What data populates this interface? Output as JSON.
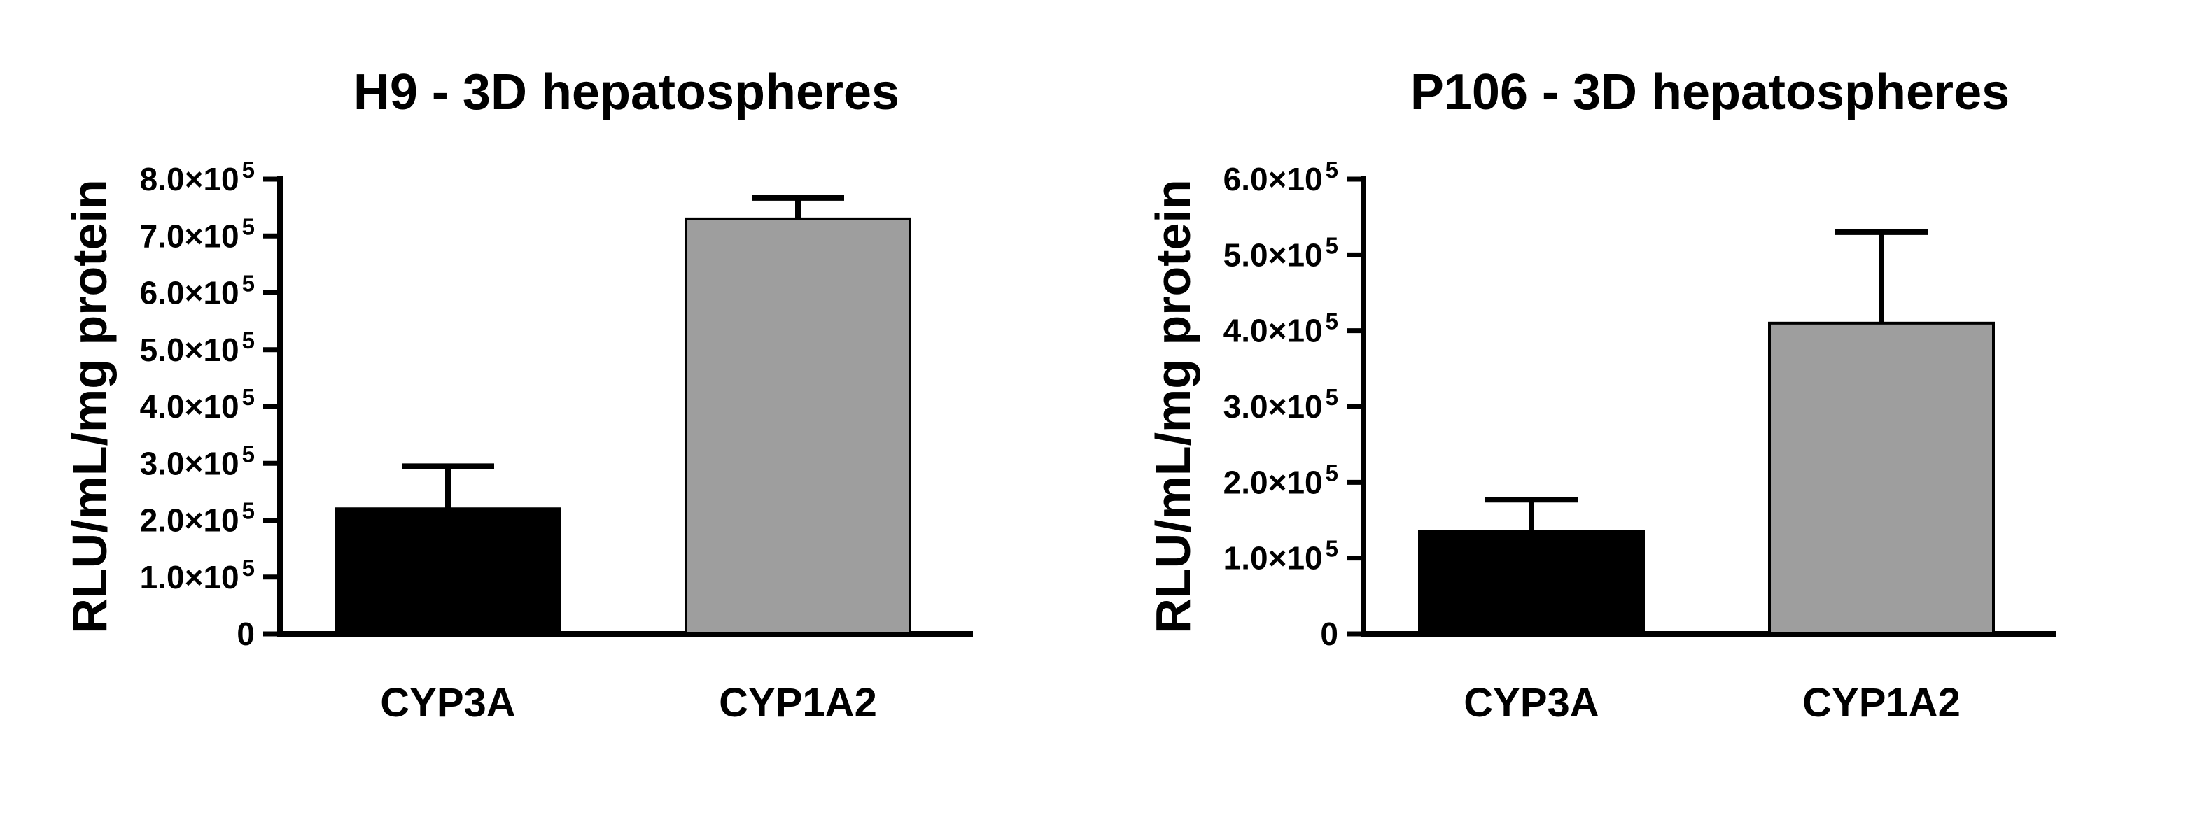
{
  "page": {
    "background": "#ffffff"
  },
  "chart_data": [
    {
      "id": "h9",
      "type": "bar",
      "title": "H9 - 3D hepatospheres",
      "ylabel": "RLU/mL/mg protein",
      "categories": [
        "CYP3A",
        "CYP1A2"
      ],
      "values": [
        220000,
        730000
      ],
      "errors_up": [
        75000,
        37000
      ],
      "bar_colors": [
        "#000000",
        "#9e9e9e"
      ],
      "ylim": [
        0,
        800000
      ],
      "ytick_values": [
        0,
        100000,
        200000,
        300000,
        400000,
        500000,
        600000,
        700000,
        800000
      ],
      "ytick_labels": [
        "0",
        "1.0×10^5",
        "2.0×10^5",
        "3.0×10^5",
        "4.0×10^5",
        "5.0×10^5",
        "6.0×10^5",
        "7.0×10^5",
        "8.0×10^5"
      ],
      "legend": "none",
      "grid": false
    },
    {
      "id": "p106",
      "type": "bar",
      "title": "P106 - 3D hepatospheres",
      "ylabel": "RLU/mL/mg protein",
      "categories": [
        "CYP3A",
        "CYP1A2"
      ],
      "values": [
        135000,
        410000
      ],
      "errors_up": [
        42000,
        120000
      ],
      "bar_colors": [
        "#000000",
        "#9e9e9e"
      ],
      "ylim": [
        0,
        600000
      ],
      "ytick_values": [
        0,
        100000,
        200000,
        300000,
        400000,
        500000,
        600000
      ],
      "ytick_labels": [
        "0",
        "1.0×10^5",
        "2.0×10^5",
        "3.0×10^5",
        "4.0×10^5",
        "5.0×10^5",
        "6.0×10^5"
      ],
      "legend": "none",
      "grid": false
    }
  ]
}
